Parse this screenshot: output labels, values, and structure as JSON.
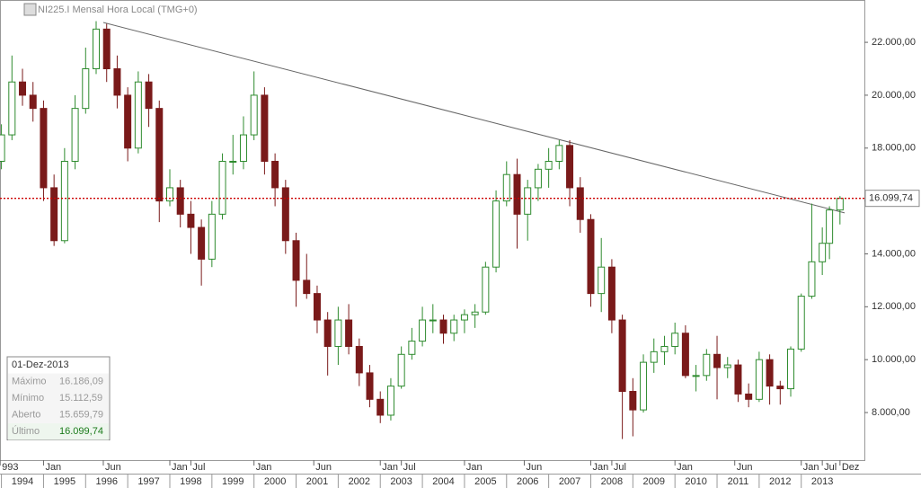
{
  "chart_data": {
    "type": "candlestick",
    "title": "NI225.I Mensal Hora Local (TMG+0)",
    "up_color": "#2e8b2e",
    "down_color": "#7a1a1a",
    "x": [
      1994.0,
      1994.25,
      1994.5,
      1994.75,
      1995.0,
      1995.25,
      1995.5,
      1995.75,
      1996.0,
      1996.25,
      1996.5,
      1996.75,
      1997.0,
      1997.25,
      1997.5,
      1997.75,
      1998.0,
      1998.25,
      1998.5,
      1998.75,
      1999.0,
      1999.25,
      1999.5,
      1999.75,
      2000.0,
      2000.25,
      2000.5,
      2000.75,
      2001.0,
      2001.25,
      2001.5,
      2001.75,
      2002.0,
      2002.25,
      2002.5,
      2002.75,
      2003.0,
      2003.25,
      2003.5,
      2003.75,
      2004.0,
      2004.25,
      2004.5,
      2004.75,
      2005.0,
      2005.25,
      2005.5,
      2005.75,
      2006.0,
      2006.25,
      2006.5,
      2006.75,
      2007.0,
      2007.25,
      2007.5,
      2007.75,
      2008.0,
      2008.25,
      2008.5,
      2008.75,
      2009.0,
      2009.25,
      2009.5,
      2009.75,
      2010.0,
      2010.25,
      2010.5,
      2010.75,
      2011.0,
      2011.25,
      2011.5,
      2011.75,
      2012.0,
      2012.25,
      2012.5,
      2012.75,
      2013.0,
      2013.25,
      2013.5,
      2013.67,
      2013.92
    ],
    "open": [
      17500,
      18500,
      20500,
      20000,
      19500,
      16500,
      14500,
      17500,
      19500,
      21000,
      22500,
      21000,
      20000,
      18000,
      20500,
      19500,
      16000,
      16500,
      15500,
      15000,
      13800,
      15500,
      17500,
      17500,
      18500,
      20000,
      17500,
      16500,
      14500,
      13000,
      12500,
      11500,
      10500,
      11500,
      10500,
      9500,
      8500,
      7900,
      9000,
      10200,
      10700,
      11500,
      11500,
      11000,
      11500,
      11700,
      11800,
      13500,
      16000,
      17000,
      15500,
      16500,
      17200,
      17500,
      18100,
      16500,
      15300,
      12500,
      13500,
      11500,
      8800,
      8100,
      9900,
      10300,
      10500,
      11000,
      9400,
      9400,
      10200,
      9700,
      9800,
      8700,
      8500,
      10000,
      9000,
      8900,
      10400,
      12400,
      13700,
      14400,
      15659.79
    ],
    "high": [
      18900,
      21500,
      21000,
      20500,
      19800,
      17000,
      18000,
      20000,
      21800,
      22800,
      22700,
      21500,
      20300,
      20900,
      20800,
      19800,
      17200,
      16800,
      16000,
      15300,
      16000,
      17800,
      18500,
      19200,
      20900,
      20300,
      17800,
      16800,
      14800,
      14000,
      12800,
      11800,
      12000,
      12100,
      10800,
      9800,
      8800,
      9300,
      10500,
      11200,
      12000,
      12100,
      11700,
      11700,
      11900,
      12100,
      13700,
      16400,
      17500,
      17600,
      16800,
      17400,
      18000,
      18300,
      18300,
      16900,
      15500,
      14600,
      13800,
      11700,
      9300,
      10200,
      10800,
      10900,
      11400,
      11300,
      9800,
      10400,
      10900,
      10100,
      10000,
      9100,
      10300,
      10200,
      9200,
      10500,
      12500,
      15900,
      15000,
      15800,
      16186.09
    ],
    "low": [
      17200,
      18300,
      19600,
      19000,
      16000,
      14300,
      14400,
      17200,
      19300,
      20800,
      20500,
      19500,
      17500,
      17800,
      18800,
      15200,
      15800,
      15000,
      14000,
      12800,
      13500,
      15300,
      17000,
      17200,
      18300,
      17000,
      15800,
      14000,
      12000,
      12300,
      11000,
      9400,
      9800,
      10200,
      9000,
      8200,
      7600,
      7700,
      8900,
      10000,
      10500,
      11000,
      10600,
      10700,
      11000,
      11200,
      11700,
      13300,
      15800,
      14200,
      14500,
      16000,
      16500,
      17200,
      15800,
      14800,
      12000,
      11800,
      11000,
      7000,
      7100,
      8000,
      9500,
      9800,
      10200,
      9300,
      8800,
      9200,
      8500,
      9300,
      8400,
      8200,
      8400,
      8300,
      8300,
      8600,
      10300,
      12300,
      13200,
      13800,
      15112.59
    ],
    "close": [
      18500,
      20500,
      20000,
      19500,
      16500,
      14500,
      17500,
      19500,
      21000,
      22500,
      21000,
      20000,
      18000,
      20500,
      19500,
      16000,
      16500,
      15500,
      15000,
      13800,
      15500,
      17500,
      17500,
      18500,
      20000,
      17500,
      16500,
      14500,
      13000,
      12500,
      11500,
      10500,
      11500,
      10500,
      9500,
      8500,
      7900,
      9000,
      10200,
      10700,
      11500,
      11500,
      11000,
      11500,
      11700,
      11800,
      13500,
      16000,
      17000,
      15500,
      16500,
      17200,
      17500,
      18100,
      16500,
      15300,
      12500,
      13500,
      11500,
      8800,
      8100,
      9900,
      10300,
      10500,
      11000,
      9400,
      9400,
      10200,
      9700,
      9800,
      8700,
      8500,
      10000,
      9000,
      8900,
      10400,
      12400,
      13700,
      14400,
      15659.79,
      16099.74
    ],
    "xlim": [
      1993.966,
      2014.5
    ],
    "ylim": [
      6200,
      23600
    ],
    "yticks": [
      {
        "value": 8000,
        "label": "8.000,00"
      },
      {
        "value": 10000,
        "label": "10.000,00"
      },
      {
        "value": 12000,
        "label": "12.000,00"
      },
      {
        "value": 14000,
        "label": "14.000,00"
      },
      {
        "value": 16000,
        "label": "16.000,00"
      },
      {
        "value": 18000,
        "label": "18.000,00"
      },
      {
        "value": 20000,
        "label": "20.000,00"
      },
      {
        "value": 22000,
        "label": "22.000,00"
      }
    ],
    "xticks": [
      1994,
      1995,
      1996,
      1997,
      1998,
      1999,
      2000,
      2001,
      2002,
      2003,
      2004,
      2005,
      2006,
      2007,
      2008,
      2009,
      2010,
      2011,
      2012,
      2013
    ],
    "month_ticks": [
      {
        "value": 1993.97,
        "label": "993"
      },
      {
        "value": 1995.0,
        "label": "Jan"
      },
      {
        "value": 1996.42,
        "label": "Jun"
      },
      {
        "value": 1998.0,
        "label": "Jan"
      },
      {
        "value": 1998.5,
        "label": "Jul"
      },
      {
        "value": 2000.0,
        "label": "Jan"
      },
      {
        "value": 2001.42,
        "label": "Jun"
      },
      {
        "value": 2003.0,
        "label": "Jan"
      },
      {
        "value": 2003.5,
        "label": "Jul"
      },
      {
        "value": 2005.0,
        "label": "Jan"
      },
      {
        "value": 2006.42,
        "label": "Jun"
      },
      {
        "value": 2008.0,
        "label": "Jan"
      },
      {
        "value": 2008.5,
        "label": "Jul"
      },
      {
        "value": 2010.0,
        "label": "Jan"
      },
      {
        "value": 2011.42,
        "label": "Jun"
      },
      {
        "value": 2013.0,
        "label": "Jan"
      },
      {
        "value": 2013.5,
        "label": "Jul"
      },
      {
        "value": 2013.92,
        "label": "Dez"
      }
    ],
    "trendline": {
      "x": [
        1996.42,
        2014.03
      ],
      "y": [
        22750,
        15550
      ],
      "color": "#666666"
    },
    "price_line": {
      "value": 16099.74,
      "label": "16.099,74",
      "color": "#cc0000"
    },
    "info": {
      "date": "01-Dez-2013",
      "rows": [
        {
          "label": "Máximo",
          "value": "16.186,09"
        },
        {
          "label": "Mínimo",
          "value": "15.112,59"
        },
        {
          "label": "Aberto",
          "value": "15.659,79"
        },
        {
          "label": "Último",
          "value": "16.099,74"
        }
      ]
    }
  }
}
